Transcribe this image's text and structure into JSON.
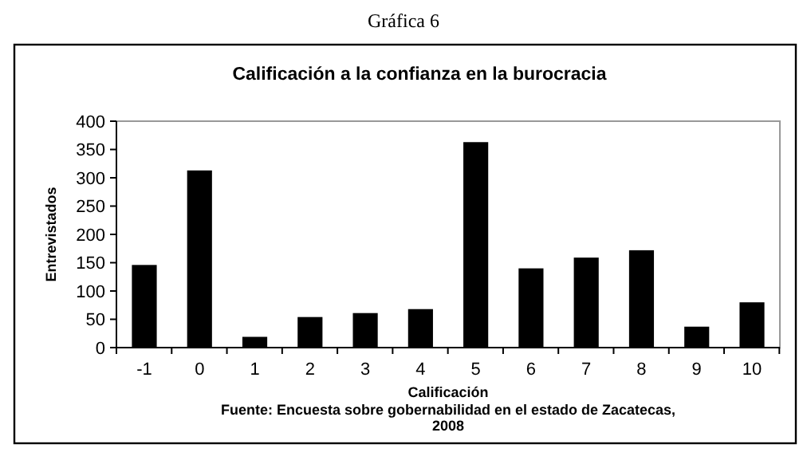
{
  "chart_data": {
    "type": "bar",
    "subtitle": "Gráfica 6",
    "title": "Calificación a la confianza en la burocracia",
    "xlabel": "Calificación",
    "ylabel": "Entrevistados",
    "categories": [
      "-1",
      "0",
      "1",
      "2",
      "3",
      "4",
      "5",
      "6",
      "7",
      "8",
      "9",
      "10"
    ],
    "values": [
      146,
      313,
      19,
      54,
      61,
      68,
      363,
      140,
      159,
      172,
      37,
      80
    ],
    "color": "#000000",
    "ylim": [
      0,
      400
    ],
    "yticks": [
      0,
      50,
      100,
      150,
      200,
      250,
      300,
      350,
      400
    ],
    "grid": false,
    "annotations": [
      "Fuente: Encuesta sobre gobernabilidad en el estado de Zacatecas,\n2008"
    ]
  }
}
